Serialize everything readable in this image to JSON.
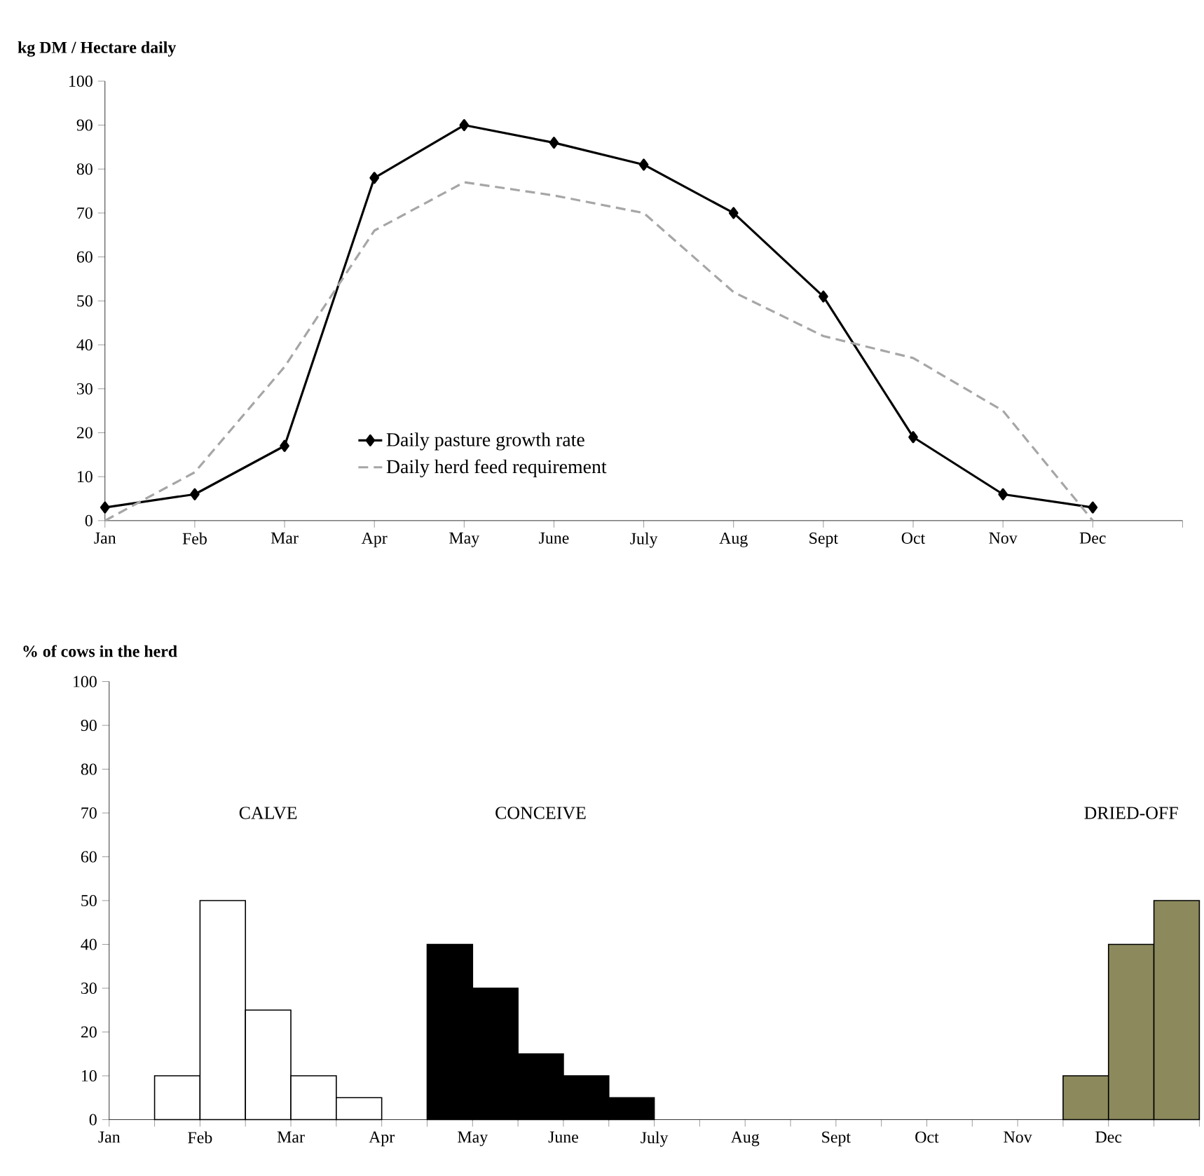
{
  "chart_data": [
    {
      "type": "line",
      "ylabel": "kg DM / Hectare daily",
      "categories": [
        "Jan",
        "Feb",
        "Mar",
        "Apr",
        "May",
        "June",
        "July",
        "Aug",
        "Sept",
        "Oct",
        "Nov",
        "Dec"
      ],
      "ylim": [
        0,
        100
      ],
      "yticks": [
        0,
        10,
        20,
        30,
        40,
        50,
        60,
        70,
        80,
        90,
        100
      ],
      "grid": false,
      "legend": "bottom",
      "series": [
        {
          "name": "Daily pasture growth rate",
          "color": "#000000",
          "marker": "diamond",
          "line_style": "solid",
          "values": [
            3,
            6,
            17,
            78,
            90,
            86,
            81,
            70,
            51,
            19,
            6,
            3
          ]
        },
        {
          "name": "Daily herd feed requirement",
          "color": "#a6a6a6",
          "marker": "none",
          "line_style": "dashed",
          "values": [
            0,
            11,
            35,
            66,
            77,
            74,
            70,
            52,
            42,
            37,
            25,
            0
          ]
        }
      ]
    },
    {
      "type": "bar",
      "ylabel": "% of cows in the herd",
      "categories": [
        "Jan",
        null,
        "Feb",
        null,
        "Mar",
        null,
        "Apr",
        null,
        "May",
        null,
        "June",
        null,
        "July",
        null,
        "Aug",
        null,
        "Sept",
        null,
        "Oct",
        null,
        "Nov",
        null,
        "Dec",
        null
      ],
      "ylim": [
        0,
        100
      ],
      "yticks": [
        0,
        10,
        20,
        30,
        40,
        50,
        60,
        70,
        80,
        90,
        100
      ],
      "grid": false,
      "legend": false,
      "series": [
        {
          "color": "#ffffff",
          "values": [
            null,
            10,
            50,
            25,
            10,
            5,
            null,
            null,
            null,
            null,
            null,
            null,
            null,
            null,
            null,
            null,
            null,
            null,
            null,
            null,
            null,
            null,
            null,
            null
          ]
        },
        {
          "color": "#000000",
          "values": [
            null,
            null,
            null,
            null,
            null,
            null,
            null,
            40,
            30,
            15,
            10,
            5,
            null,
            null,
            null,
            null,
            null,
            null,
            null,
            null,
            null,
            null,
            null,
            null
          ]
        },
        {
          "color": "#8c8a5c",
          "values": [
            null,
            null,
            null,
            null,
            null,
            null,
            null,
            null,
            null,
            null,
            null,
            null,
            null,
            null,
            null,
            null,
            null,
            null,
            null,
            null,
            null,
            10,
            40,
            50
          ]
        }
      ],
      "annotations": [
        "CALVE",
        "CONCEIVE",
        "DRIED-OFF"
      ]
    }
  ]
}
